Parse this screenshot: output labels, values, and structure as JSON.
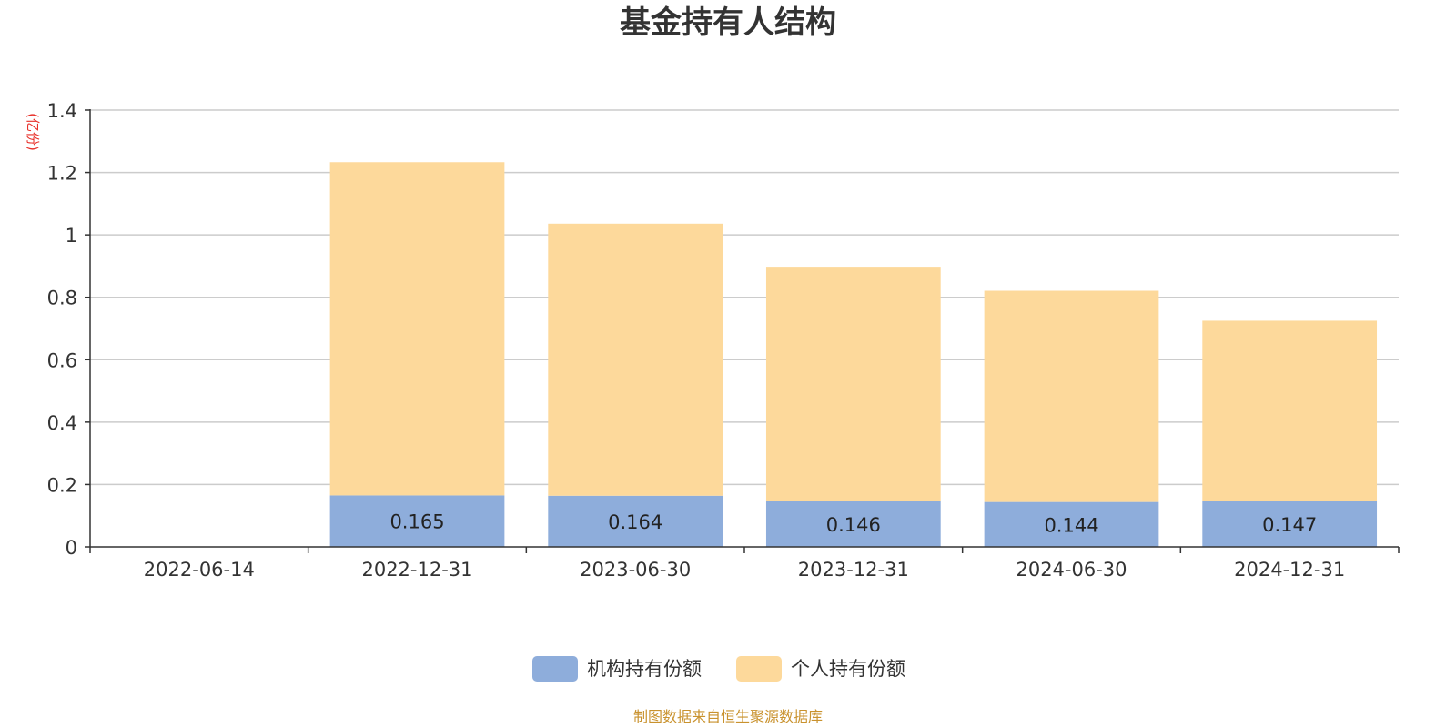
{
  "chart_data": {
    "type": "bar",
    "stacked": true,
    "title": "基金持有人结构",
    "unit_label": "(亿份)",
    "categories": [
      "2022-06-14",
      "2022-12-31",
      "2023-06-30",
      "2023-12-31",
      "2024-06-30",
      "2024-12-31"
    ],
    "ylim": [
      0,
      1.4
    ],
    "yticks": [
      0,
      0.2,
      0.4,
      0.6,
      0.8,
      1,
      1.2,
      1.4
    ],
    "ytick_labels": [
      "0",
      "0.2",
      "0.4",
      "0.6",
      "0.8",
      "1",
      "1.2",
      "1.4"
    ],
    "grid": true,
    "legend_position": "bottom",
    "series": [
      {
        "name": "机构持有份额",
        "color": "#8EADDB",
        "values": [
          0,
          0.165,
          0.164,
          0.146,
          0.144,
          0.147
        ],
        "data_labels": [
          "",
          "0.165",
          "0.164",
          "0.146",
          "0.144",
          "0.147"
        ]
      },
      {
        "name": "个人持有份额",
        "color": "#FDD99B",
        "values": [
          0,
          1.068,
          0.872,
          0.752,
          0.677,
          0.578
        ],
        "data_labels": [
          "",
          "",
          "",
          "",
          "",
          ""
        ]
      }
    ]
  },
  "colors": {
    "title": "#333333",
    "unit_label": "#E8302A",
    "axis": "#333333",
    "grid": "#CCCCCC",
    "source": "#C9922E"
  },
  "footer": {
    "source": "制图数据来自恒生聚源数据库"
  }
}
